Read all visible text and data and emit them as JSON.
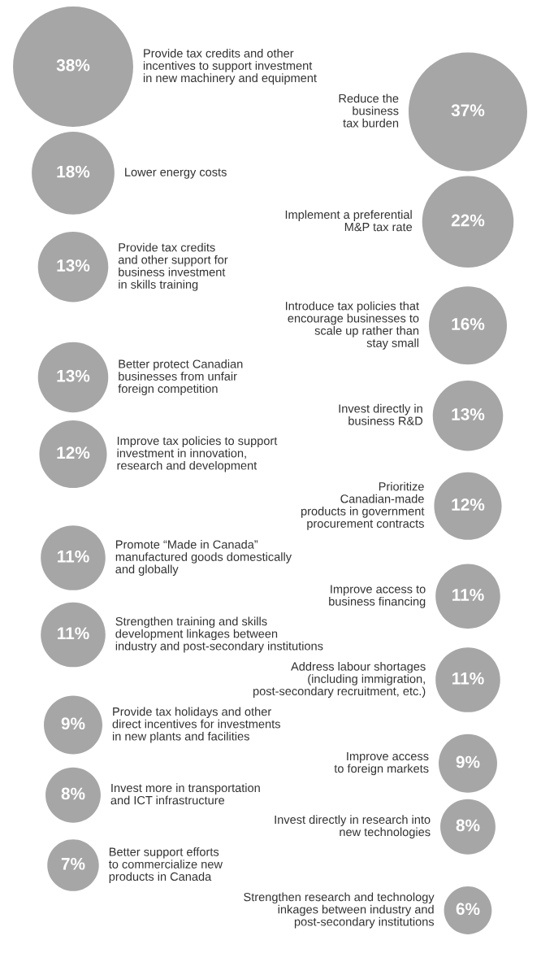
{
  "chart_data": {
    "type": "other",
    "color": "#a6a6a6",
    "categories": [
      "Provide tax credits and other\nincentives to support investment\nin new machinery and equipment",
      "Reduce the\nbusiness\ntax burden",
      "Lower energy costs",
      "Implement a preferential\nM&P tax rate",
      "Provide tax credits\nand other support for\nbusiness investment\nin skills training",
      "Introduce tax policies that\nencourage businesses to\nscale up rather than\nstay small",
      "Better protect Canadian\nbusinesses from unfair\nforeign competition",
      "Invest directly in\nbusiness R&D",
      "Improve tax policies to support\ninvestment in innovation,\nresearch and development",
      "Prioritize\nCanadian-made\nproducts in government\nprocurement contracts",
      "Promote “Made in Canada”\nmanufactured goods domestically\nand globally",
      "Improve access to\nbusiness financing",
      "Strengthen training and skills\ndevelopment linkages between\nindustry and post-secondary institutions",
      "Address labour shortages\n(including immigration,\npost-secondary recruitment, etc.)",
      "Provide tax holidays and other\ndirect incentives for investments\nin new plants and facilities",
      "Improve access\nto foreign markets",
      "Invest more in transportation\nand ICT infrastructure",
      "Invest directly in research into\nnew technologies",
      "Better support efforts\nto commercialize new\nproducts in Canada",
      "Strengthen research and technology\ninkages between industry and\npost-secondary institutions"
    ],
    "values": [
      38,
      37,
      18,
      22,
      13,
      16,
      13,
      13,
      12,
      12,
      11,
      11,
      11,
      11,
      9,
      9,
      8,
      8,
      7,
      6
    ],
    "value_labels": [
      "38%",
      "37%",
      "18%",
      "22%",
      "13%",
      "16%",
      "13%",
      "13%",
      "12%",
      "12%",
      "11%",
      "11%",
      "11%",
      "11%",
      "9%",
      "9%",
      "8%",
      "8%",
      "7%",
      "6%"
    ]
  }
}
